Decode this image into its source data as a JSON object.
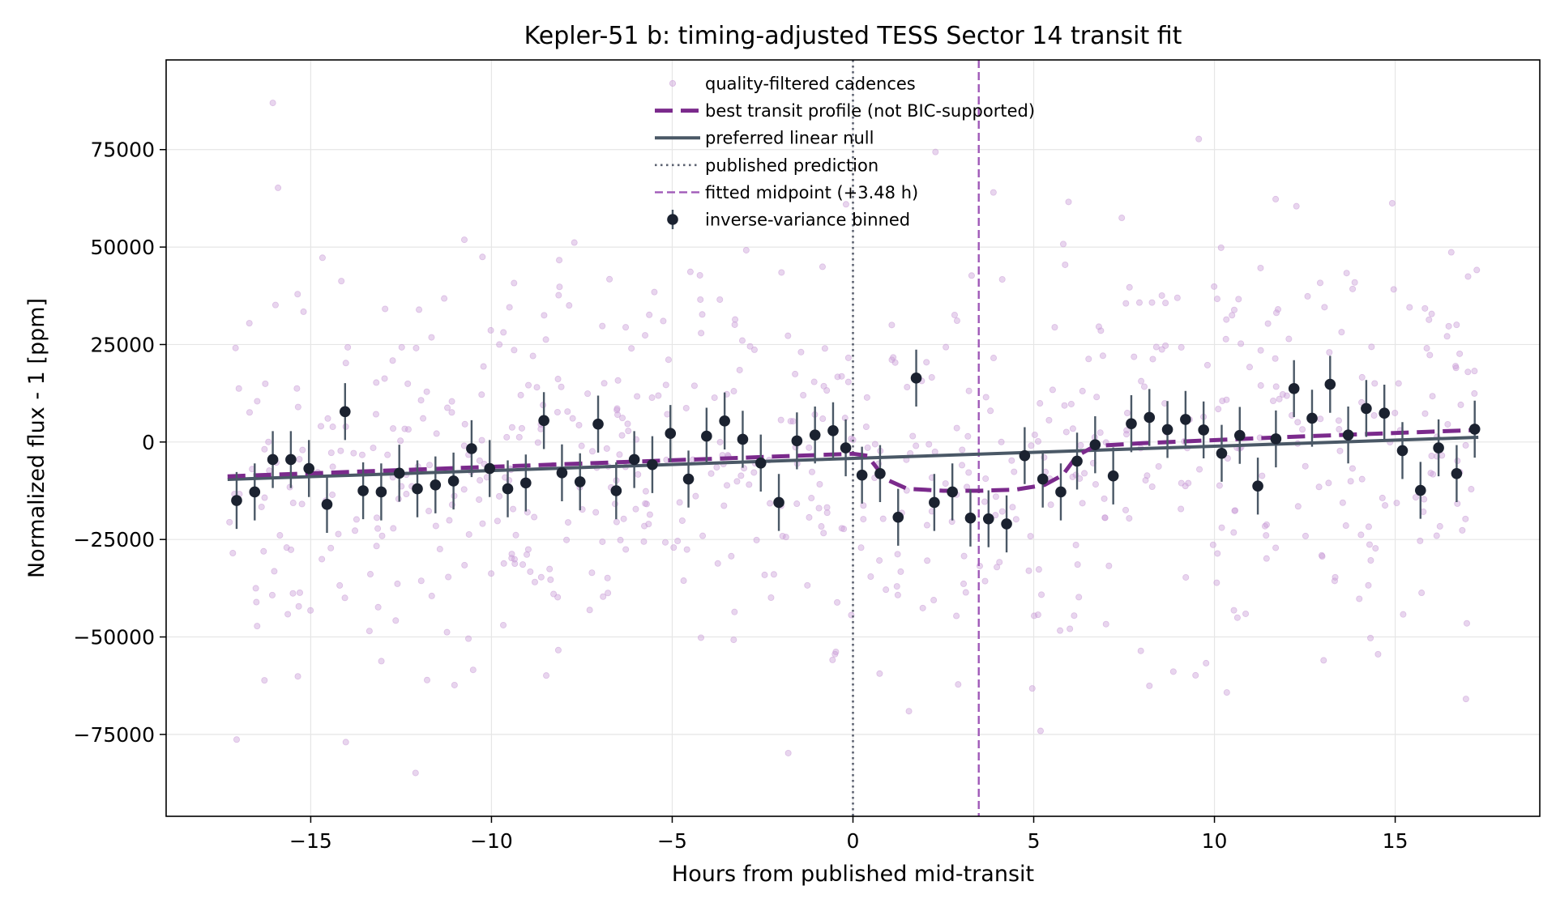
{
  "chart_data": {
    "type": "scatter",
    "title": "Kepler-51 b: timing-adjusted TESS Sector 14 transit fit",
    "xlabel": "Hours from published mid-transit",
    "ylabel": "Normalized flux - 1 [ppm]",
    "xlim": [
      -19.0,
      19.0
    ],
    "ylim": [
      -96000,
      98000
    ],
    "xticks": [
      -15,
      -10,
      -5,
      0,
      5,
      10,
      15
    ],
    "xtick_labels": [
      "−15",
      "−10",
      "−5",
      "0",
      "5",
      "10",
      "15"
    ],
    "yticks": [
      -75000,
      -50000,
      -25000,
      0,
      25000,
      50000,
      75000
    ],
    "ytick_labels": [
      "−75000",
      "−50000",
      "−25000",
      "0",
      "25000",
      "50000",
      "75000"
    ],
    "grid": true,
    "legend_position": "top-center",
    "colors": {
      "raw": "#c99ad6",
      "transit": "#7b2a8c",
      "null": "#4a5866",
      "prediction": "#5b6170",
      "midpoint": "#a05ab8",
      "binned": "#1b2230"
    },
    "series": [
      {
        "name": "quality-filtered cadences",
        "kind": "scatter",
        "x_range": [
          -17.3,
          17.3
        ],
        "scatter_sigma": 27000,
        "count": 700
      },
      {
        "name": "best transit profile (not BIC-supported)",
        "kind": "line",
        "x": [
          -17.3,
          0.0,
          0.4,
          0.9,
          1.5,
          2.5,
          3.5,
          4.5,
          5.3,
          5.8,
          6.2,
          6.7,
          8.0,
          12.0,
          17.3
        ],
        "y": [
          -8800,
          -3000,
          -3500,
          -9500,
          -12000,
          -12500,
          -12500,
          -12200,
          -11000,
          -8500,
          -3500,
          -1000,
          -300,
          1300,
          3100
        ]
      },
      {
        "name": "preferred linear null",
        "kind": "line",
        "x": [
          -17.3,
          17.3
        ],
        "y": [
          -9600,
          1200
        ]
      },
      {
        "name": "published prediction",
        "kind": "vline",
        "x": 0
      },
      {
        "name": "fitted midpoint (+3.48 h)",
        "kind": "vline",
        "x": 3.48
      },
      {
        "name": "inverse-variance binned",
        "kind": "errorbar",
        "yerr": 7300,
        "x": [
          -17.05,
          -16.55,
          -16.05,
          -15.55,
          -15.05,
          -14.55,
          -14.05,
          -13.55,
          -13.05,
          -12.55,
          -12.05,
          -11.55,
          -11.05,
          -10.55,
          -10.05,
          -9.55,
          -9.05,
          -8.55,
          -8.05,
          -7.55,
          -7.05,
          -6.55,
          -6.05,
          -5.55,
          -5.05,
          -4.55,
          -4.05,
          -3.55,
          -3.05,
          -2.55,
          -2.05,
          -1.55,
          -1.05,
          -0.55,
          -0.2,
          0.25,
          0.75,
          1.25,
          1.75,
          2.25,
          2.75,
          3.25,
          3.75,
          4.25,
          4.75,
          5.25,
          5.75,
          6.2,
          6.7,
          7.2,
          7.7,
          8.2,
          8.7,
          9.2,
          9.7,
          10.2,
          10.7,
          11.2,
          11.7,
          12.2,
          12.7,
          13.2,
          13.7,
          14.2,
          14.7,
          15.2,
          15.7,
          16.2,
          16.7,
          17.2
        ],
        "y": [
          -15000,
          -12800,
          -4500,
          -4500,
          -6800,
          -16000,
          7800,
          -12500,
          -12800,
          -8000,
          -12000,
          -11000,
          -10000,
          -1700,
          -6800,
          -12000,
          -10500,
          5500,
          -7900,
          -10200,
          4600,
          -12500,
          -4500,
          -5800,
          2200,
          -9500,
          1500,
          5400,
          700,
          -5400,
          -15500,
          300,
          1800,
          2900,
          -1500,
          -8500,
          -8100,
          -19300,
          16400,
          -15500,
          -12800,
          -19500,
          -19700,
          -21000,
          -3500,
          -9500,
          -12800,
          -4900,
          -700,
          -8700,
          4700,
          6300,
          3200,
          5800,
          3100,
          -2900,
          1700,
          -11300,
          800,
          13700,
          6100,
          14800,
          1800,
          8600,
          7400,
          -2200,
          -12400,
          -1500,
          -8100,
          3300
        ]
      }
    ]
  }
}
